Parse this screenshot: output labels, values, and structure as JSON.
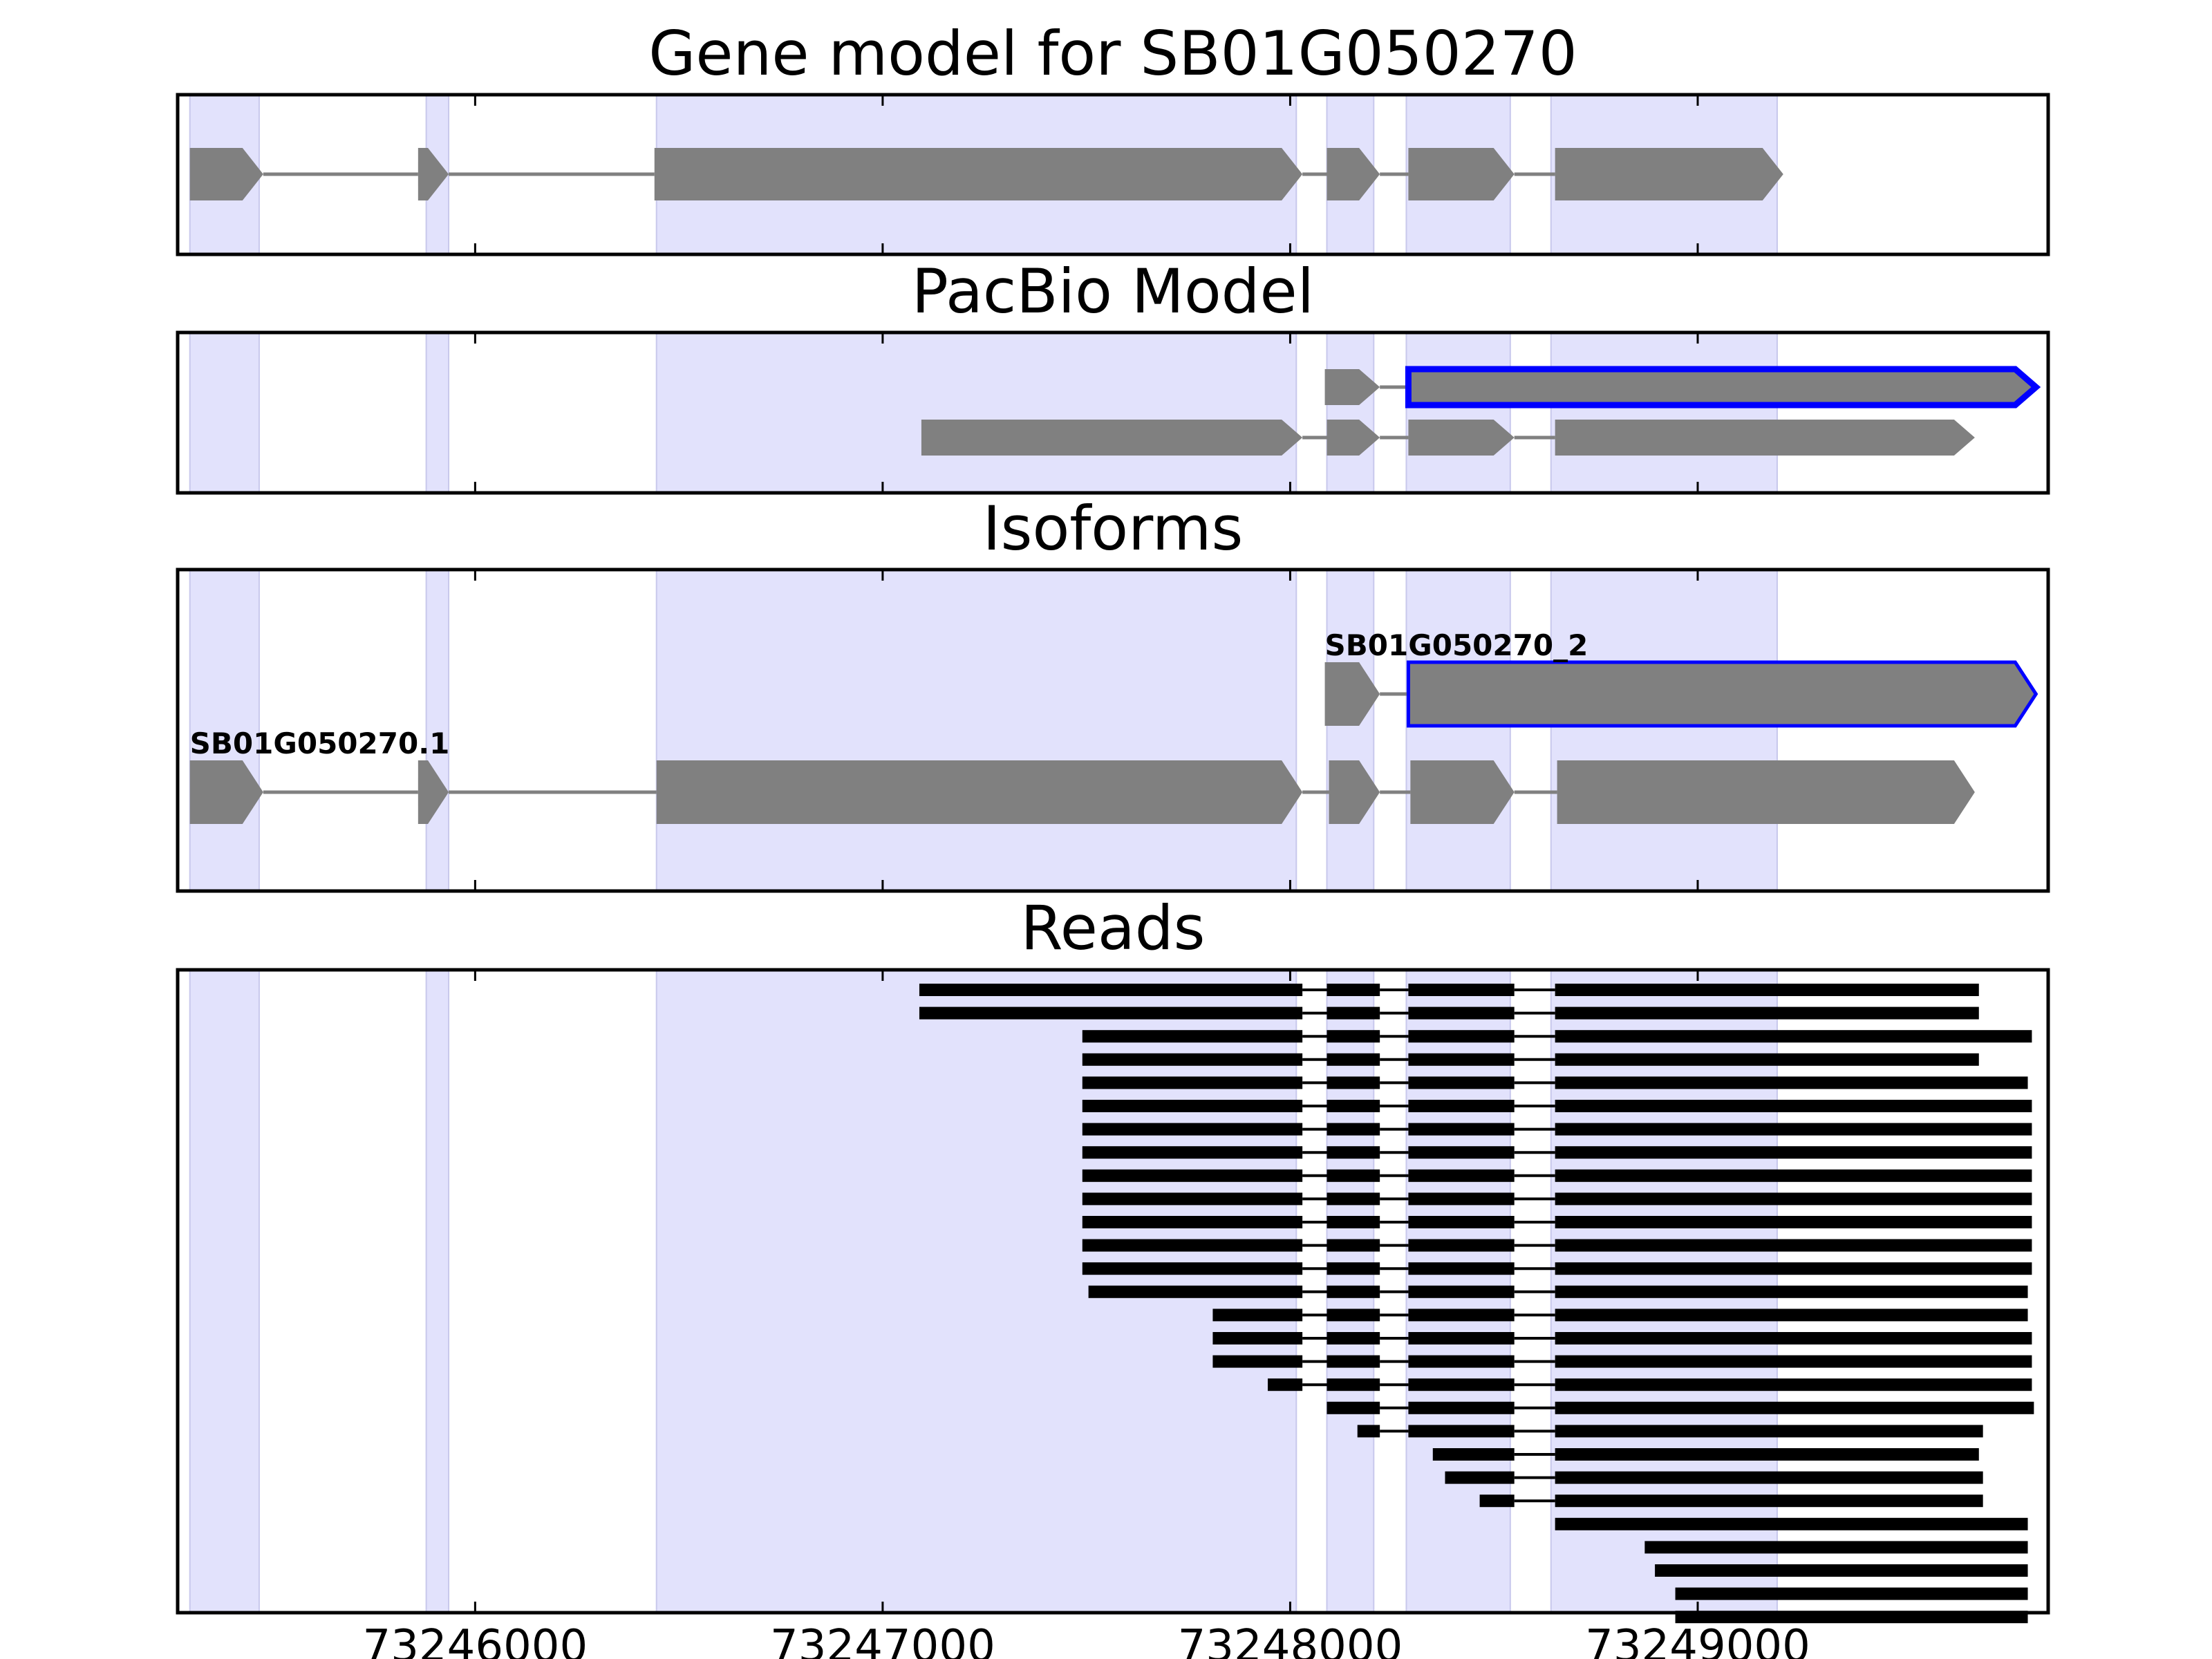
{
  "chart_data": {
    "type": "gene_model",
    "x_ticks": [
      73246000,
      73247000,
      73248000,
      73249000
    ],
    "x_tick_labels": [
      "73246000",
      "73247000",
      "73248000",
      "73249000"
    ],
    "xlim": [
      73245270,
      73249860
    ],
    "colors": {
      "exon_fill": "#808080",
      "highlight_stroke": "#0000ff",
      "exon_band": "#e2e2fc",
      "read": "#000000"
    },
    "exon_bands": [
      [
        73245300,
        73245470
      ],
      [
        73245880,
        73245935
      ],
      [
        73246445,
        73248015
      ],
      [
        73248090,
        73248205
      ],
      [
        73248285,
        73248540
      ],
      [
        73248640,
        73249195
      ]
    ],
    "panels": [
      {
        "title": "Gene model for SB01G050270",
        "transcripts": [
          {
            "exons": [
              [
                73245300,
                73245480
              ],
              [
                73245860,
                73245935
              ],
              [
                73246440,
                73248030
              ],
              [
                73248090,
                73248220
              ],
              [
                73248290,
                73248550
              ],
              [
                73248650,
                73249210
              ]
            ],
            "highlight": false
          }
        ]
      },
      {
        "title": "PacBio Model",
        "transcripts": [
          {
            "exons": [
              [
                73248085,
                73248220
              ],
              [
                73248290,
                73249830
              ]
            ],
            "highlight": true
          },
          {
            "exons": [
              [
                73247095,
                73248030
              ],
              [
                73248090,
                73248220
              ],
              [
                73248290,
                73248550
              ],
              [
                73248650,
                73249680
              ]
            ],
            "highlight": false
          }
        ]
      },
      {
        "title": "Isoforms",
        "transcripts": [
          {
            "label": "SB01G050270_2",
            "exons": [
              [
                73248085,
                73248220
              ],
              [
                73248290,
                73249830
              ]
            ],
            "highlight": true
          },
          {
            "label": "SB01G050270.1",
            "exons": [
              [
                73245300,
                73245480
              ],
              [
                73245860,
                73245935
              ],
              [
                73246445,
                73248030
              ],
              [
                73248095,
                73248220
              ],
              [
                73248295,
                73248550
              ],
              [
                73248655,
                73249680
              ]
            ],
            "highlight": false
          }
        ]
      },
      {
        "title": "Reads",
        "reads": [
          [
            73247090,
            73249690,
            1
          ],
          [
            73247090,
            73249690,
            1
          ],
          [
            73247490,
            73249820,
            1
          ],
          [
            73247490,
            73249690,
            1
          ],
          [
            73247490,
            73249810,
            1
          ],
          [
            73247490,
            73249820,
            1
          ],
          [
            73247490,
            73249820,
            1
          ],
          [
            73247490,
            73249820,
            1
          ],
          [
            73247490,
            73249820,
            1
          ],
          [
            73247490,
            73249820,
            1
          ],
          [
            73247490,
            73249820,
            1
          ],
          [
            73247490,
            73249820,
            1
          ],
          [
            73247490,
            73249820,
            1
          ],
          [
            73247505,
            73249810,
            1
          ],
          [
            73247810,
            73249810,
            1
          ],
          [
            73247810,
            73249820,
            1
          ],
          [
            73247810,
            73249820,
            1
          ],
          [
            73247945,
            73249820,
            1
          ],
          [
            73248080,
            73249825,
            1
          ],
          [
            73248165,
            73249700,
            2
          ],
          [
            73248350,
            73249690,
            2
          ],
          [
            73248380,
            73249700,
            2
          ],
          [
            73248465,
            73249700,
            2
          ],
          [
            73248650,
            73249810,
            3
          ],
          [
            73248870,
            73249810,
            4
          ],
          [
            73248895,
            73249810,
            4
          ],
          [
            73248945,
            73249810,
            4
          ],
          [
            73248945,
            73249810,
            4
          ]
        ]
      }
    ]
  }
}
